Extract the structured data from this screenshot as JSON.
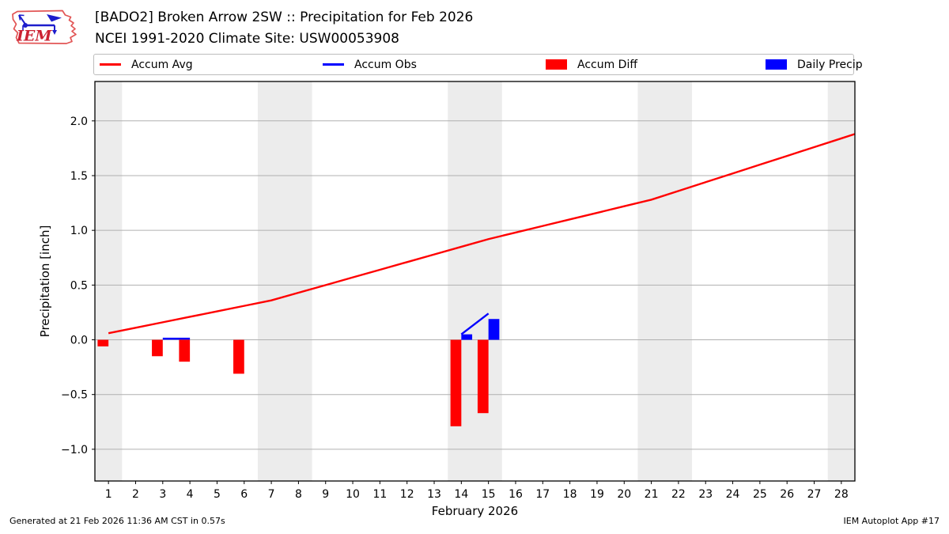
{
  "header": {
    "title": "[BADO2] Broken Arrow 2SW :: Precipitation for Feb 2026",
    "subtitle": "NCEI 1991-2020 Climate Site: USW00053908",
    "logo_text": "IEM"
  },
  "legend": {
    "items": [
      {
        "label": "Accum Avg",
        "swatch": "line",
        "color": "#ff0000"
      },
      {
        "label": "Accum Obs",
        "swatch": "line",
        "color": "#0000ff"
      },
      {
        "label": "Accum Diff",
        "swatch": "rect",
        "color": "#ff0000"
      },
      {
        "label": "Daily Precip",
        "swatch": "rect",
        "color": "#0000ff"
      }
    ]
  },
  "footer": {
    "left": "Generated at 21 Feb 2026 11:36 AM CST in 0.57s",
    "right": "IEM Autoplot App #17"
  },
  "chart_data": {
    "type": "line+bar",
    "title": "[BADO2] Broken Arrow 2SW :: Precipitation for Feb 2026",
    "subtitle": "NCEI 1991-2020 Climate Site: USW00053908",
    "xlabel": "February 2026",
    "ylabel": "Precipitation [inch]",
    "xlim": [
      0.5,
      28.5
    ],
    "ylim": [
      -1.29,
      2.36
    ],
    "xticks": [
      1,
      2,
      3,
      4,
      5,
      6,
      7,
      8,
      9,
      10,
      11,
      12,
      13,
      14,
      15,
      16,
      17,
      18,
      19,
      20,
      21,
      22,
      23,
      24,
      25,
      26,
      27,
      28
    ],
    "yticks": [
      -1.0,
      -0.5,
      0.0,
      0.5,
      1.0,
      1.5,
      2.0
    ],
    "grid": "horizontal",
    "legend_position": "top",
    "weekend_bands": [
      [
        0.5,
        1.5
      ],
      [
        6.5,
        8.5
      ],
      [
        13.5,
        15.5
      ],
      [
        20.5,
        22.5
      ],
      [
        27.5,
        28.5
      ]
    ],
    "bar_width": 0.4,
    "style": {
      "avg_color": "#ff0000",
      "obs_color": "#0000ff",
      "diff_color": "#ff0000",
      "precip_color": "#0000ff",
      "band_color": "#ececec",
      "grid_color": "#b0b0b0",
      "spine_color": "#000000"
    },
    "series": [
      {
        "name": "Accum Avg",
        "type": "line",
        "color": "#ff0000",
        "x": [
          1,
          2,
          3,
          4,
          5,
          6,
          7,
          8,
          9,
          10,
          11,
          12,
          13,
          14,
          15,
          16,
          17,
          18,
          19,
          20,
          21,
          22,
          23,
          24,
          25,
          26,
          27,
          28
        ],
        "values": [
          0.06,
          0.11,
          0.16,
          0.21,
          0.26,
          0.31,
          0.36,
          0.43,
          0.5,
          0.57,
          0.64,
          0.71,
          0.78,
          0.85,
          0.92,
          0.98,
          1.04,
          1.1,
          1.16,
          1.22,
          1.28,
          1.36,
          1.44,
          1.52,
          1.6,
          1.68,
          1.76,
          1.84
        ],
        "extend_to_right_edge": true
      },
      {
        "name": "Accum Obs",
        "type": "line",
        "color": "#0000ff",
        "segments": [
          {
            "x": [
              3,
              4
            ],
            "values": [
              0.01,
              0.01
            ]
          },
          {
            "x": [
              14,
              15
            ],
            "values": [
              0.05,
              0.24
            ]
          }
        ]
      },
      {
        "name": "Accum Diff",
        "type": "bar",
        "color": "#ff0000",
        "align": "left_of_day",
        "x": [
          1,
          3,
          4,
          6,
          14,
          15
        ],
        "values": [
          -0.06,
          -0.15,
          -0.2,
          -0.31,
          -0.79,
          -0.67
        ]
      },
      {
        "name": "Daily Precip",
        "type": "bar",
        "color": "#0000ff",
        "align": "right_of_day",
        "x": [
          14,
          15
        ],
        "values": [
          0.05,
          0.19
        ]
      }
    ]
  }
}
